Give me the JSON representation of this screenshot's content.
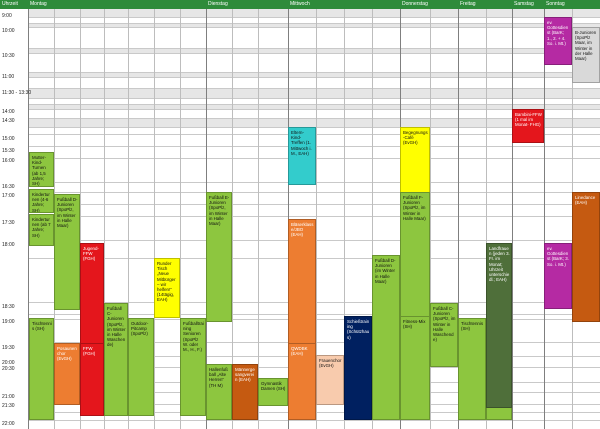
{
  "header": {
    "time_col": "Uhrzeit",
    "days": [
      "Montag",
      "Dienstag",
      "Mittwoch",
      "Donnerstag",
      "Freitag",
      "Samstag",
      "Sonntag"
    ]
  },
  "times": [
    "9:00",
    "10:00",
    "10:30",
    "11:00",
    "11:30 - 13:30",
    "14:00",
    "14:30",
    "15:00",
    "15:30",
    "16:00",
    "16:30",
    "17:00",
    "17:30",
    "18:00",
    "18:30",
    "19:00",
    "19:30",
    "20:00",
    "20:30",
    "21:00",
    "21:30",
    "22:00"
  ],
  "colors": {
    "green": "#8dc63f",
    "red": "#e4161c",
    "yellow": "#ffff00",
    "orange": "#ed7d31",
    "grey": "#d9d9d9",
    "brown": "#c55a11",
    "peach": "#f8cbad",
    "cyan": "#33cccc",
    "navy": "#002060",
    "magenta": "#b52aa3",
    "darkgreen": "#4f6f3a",
    "header": "#2e8b3a"
  },
  "events": [
    {
      "text": "Mutter-Kind-Turnen (ab 1,5 Jahre; SH)"
    },
    {
      "text": "Fußball D-Junioren (SpoPlz, im Winter in Halle Maar)"
    },
    {
      "text": "Kinderturnen (4-6 Jahre; SH)"
    },
    {
      "text": "Kinderturnen (ab 7 Jahre; SH)"
    },
    {
      "text": "Jugend-FFW (FGH)"
    },
    {
      "text": "Tischtennis (SH)"
    },
    {
      "text": "Posaunenchor (EvGH)"
    },
    {
      "text": "FFW (FGH)"
    },
    {
      "text": "Fußball C-Junioren (SpoPlz, im Winter in Halle Waschende)"
    },
    {
      "text": "Runder Tisch „Neue Mitbürger – wir helfen!“ (14tägig, EAH)"
    },
    {
      "text": "Outdoor-Pitcamp (SpoPlz)"
    },
    {
      "text": "Fußball E-Junioren (SpoPlz, im Winter in Halle Maar)"
    },
    {
      "text": "Fußballtraining Senioren (SpoPlz W. oder M., H., F.)"
    },
    {
      "text": "Hallenfußball „Alte Herren“ (TH M)"
    },
    {
      "text": "Männergesangverein (EAH)"
    },
    {
      "text": "Gymnastik Damen (SH)"
    },
    {
      "text": "Eltern-Kind-Treffen (1. Mittwoch i. M., EAH)"
    },
    {
      "text": "Bläserklasse/JBO (EAH)"
    },
    {
      "text": "QWDBK (EAH)"
    },
    {
      "text": "Frauenchor (EvGH)"
    },
    {
      "text": "Schießtraining (Schützhaus)"
    },
    {
      "text": "Begegnungs-Café (EvGH)"
    },
    {
      "text": "Fußball F-Junioren (SpoPlz, im Winter in Halle Maar)"
    },
    {
      "text": "Fußball D-Junioren (im Winter in Halle Maar)"
    },
    {
      "text": "Fitness-Mix (SH)"
    },
    {
      "text": "Fußball C-Junioren (SpoPlz, im Winter in Halle Waschende)"
    },
    {
      "text": "Tischtennis (SH)"
    },
    {
      "text": "Fußballtraining Senioren (SpoPlz W. oder M., H., F.)"
    },
    {
      "text": "Bambini-FFW (1 mal im Monat- FHG)"
    },
    {
      "text": "Landfrauen (jeden 3. Fr. im Monat; Uhrzeit unterschiedl.; EAH)"
    },
    {
      "text": "ev. Gottesdienst (BarK; 1., 2. + 4. So. i. Mt.)"
    },
    {
      "text": "ev. Gottesdienst (BarK; 3. So. i. Mt.)"
    },
    {
      "text": "B-Junioren (SpoPlz Maar, im Winter in der Halle Maar)"
    },
    {
      "text": "Linedance (EAH)"
    }
  ]
}
